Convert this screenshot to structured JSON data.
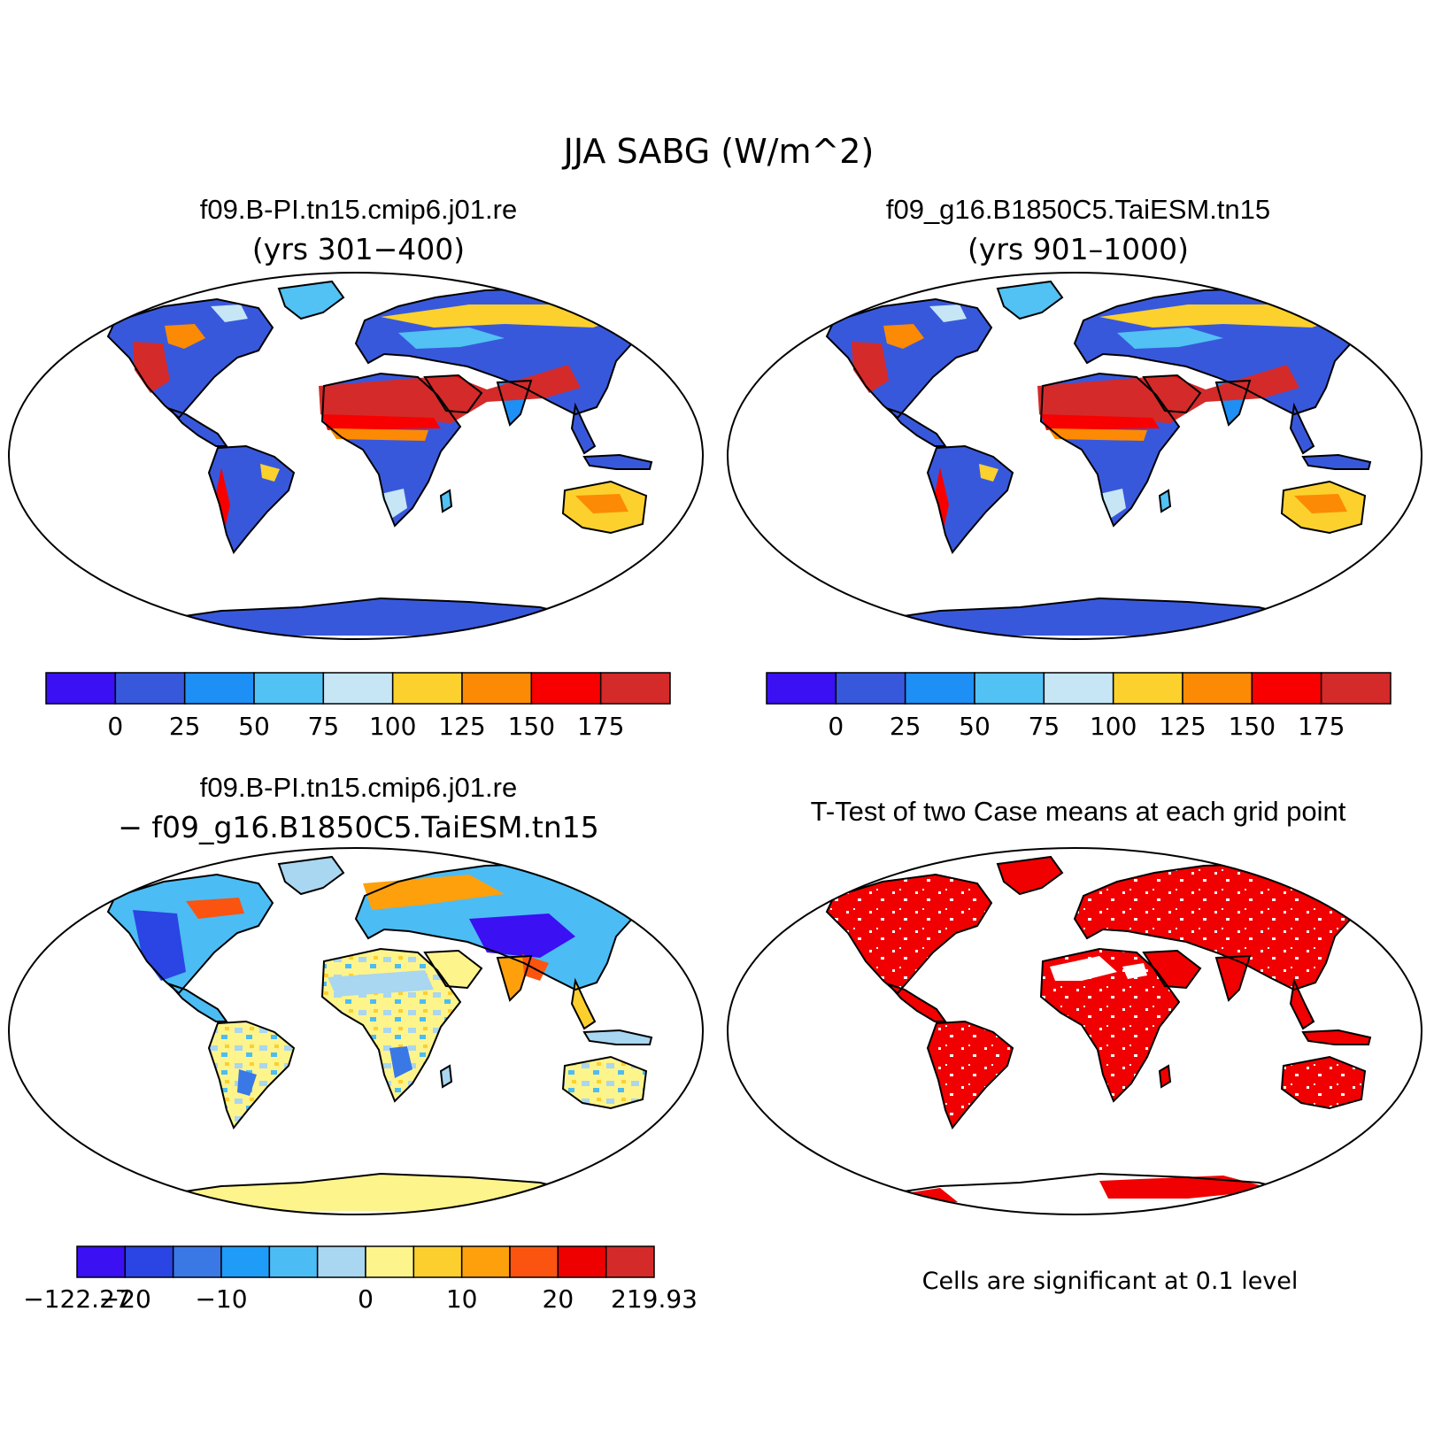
{
  "figure": {
    "title": "JJA SABG (W/m^2)"
  },
  "panels": [
    {
      "id": "case1",
      "title": "f09.B-PI.tn15.cmip6.j01.re",
      "subtitle": "(yrs 301−400)",
      "colorbar": {
        "colors": [
          "#3b10f2",
          "#3858dc",
          "#1e8ff5",
          "#52c1f4",
          "#c6e6f6",
          "#fcd12d",
          "#fc8a04",
          "#f80000",
          "#d42a2a"
        ],
        "labels": [
          "0",
          "25",
          "50",
          "75",
          "100",
          "125",
          "150",
          "175"
        ]
      }
    },
    {
      "id": "case2",
      "title": "f09_g16.B1850C5.TaiESM.tn15",
      "subtitle": "(yrs 901–1000)",
      "colorbar": {
        "colors": [
          "#3b10f2",
          "#3858dc",
          "#1e8ff5",
          "#52c1f4",
          "#c6e6f6",
          "#fcd12d",
          "#fc8a04",
          "#f80000",
          "#d42a2a"
        ],
        "labels": [
          "0",
          "25",
          "50",
          "75",
          "100",
          "125",
          "150",
          "175"
        ]
      }
    },
    {
      "id": "diff",
      "title": "f09.B-PI.tn15.cmip6.j01.re",
      "subtitle": "− f09_g16.B1850C5.TaiESM.tn15",
      "colorbar": {
        "colors": [
          "#3b10f2",
          "#2a45e3",
          "#3a78e6",
          "#1e9cf8",
          "#4cbcf4",
          "#a9d6f0",
          "#fdf48c",
          "#fdcf2e",
          "#fda00c",
          "#fa5410",
          "#ee0000",
          "#d42a2a"
        ],
        "labels": [
          "−122.27",
          "−20",
          "−10",
          "0",
          "10",
          "20",
          "219.93"
        ],
        "label_boxes": [
          0,
          1,
          3,
          6,
          8,
          10,
          12
        ]
      }
    },
    {
      "id": "ttest",
      "title": "T-Test of two Case means at each grid point",
      "note": "Cells are significant at 0.1 level",
      "color": "#f00000"
    }
  ]
}
